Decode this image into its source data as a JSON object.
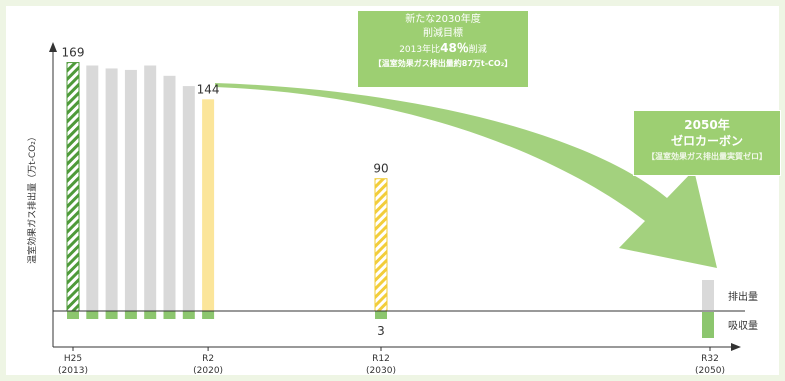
{
  "chart_data": {
    "type": "bar",
    "ylabel": "温室効果ガス排出量（万t-CO₂）",
    "x_ticks": [
      {
        "label": "H25",
        "sub": "(2013)"
      },
      {
        "label": "R2",
        "sub": "(2020)"
      },
      {
        "label": "R12",
        "sub": "(2030)"
      },
      {
        "label": "R32",
        "sub": "(2050)"
      }
    ],
    "bars": [
      {
        "year": 2013,
        "emission": 169,
        "absorption": 3,
        "style": "hatched-green",
        "label": "169"
      },
      {
        "year": 2014,
        "emission": 167,
        "absorption": 3,
        "style": "gray"
      },
      {
        "year": 2015,
        "emission": 165,
        "absorption": 3,
        "style": "gray"
      },
      {
        "year": 2016,
        "emission": 164,
        "absorption": 3,
        "style": "gray"
      },
      {
        "year": 2017,
        "emission": 167,
        "absorption": 3,
        "style": "gray"
      },
      {
        "year": 2018,
        "emission": 160,
        "absorption": 3,
        "style": "gray"
      },
      {
        "year": 2019,
        "emission": 153,
        "absorption": 3,
        "style": "gray"
      },
      {
        "year": 2020,
        "emission": 144,
        "absorption": 3,
        "style": "yellow",
        "label": "144"
      },
      {
        "year": 2030,
        "emission": 90,
        "absorption": 3,
        "style": "hatched-yellow",
        "label": "90",
        "absorption_label": "3"
      }
    ],
    "legend": {
      "emission": "排出量",
      "absorption": "吸収量"
    },
    "colors": {
      "gray": "#d9d9d9",
      "yellow": "#fbe59a",
      "green": "#8cc66e",
      "hatch_yellow": "#f2cd3a",
      "hatch_green": "#4e9a3a"
    }
  },
  "callouts": {
    "target_2030": {
      "line1": "新たな2030年度",
      "line2": "削減目標",
      "line3_pre": "2013年比",
      "line3_pct": "48％",
      "line3_post": "削減",
      "line4": "【温室効果ガス排出量約87万t-CO₂】"
    },
    "zero_2050": {
      "title1": "2050年",
      "title2": "ゼロカーボン",
      "note": "【温室効果ガス排出量実質ゼロ】"
    }
  }
}
